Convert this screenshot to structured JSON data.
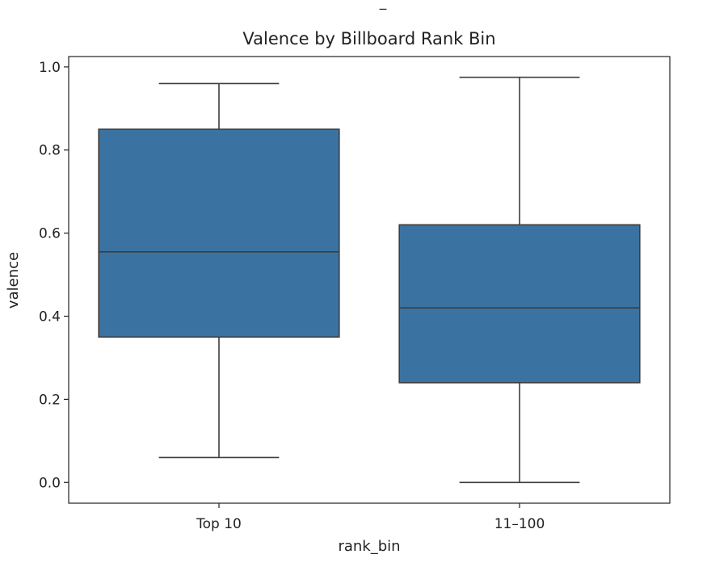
{
  "chart_data": {
    "type": "box",
    "top_mark": "_",
    "title": "Valence by Billboard Rank Bin",
    "xlabel": "rank_bin",
    "ylabel": "valence",
    "ylim": [
      -0.05,
      1.025
    ],
    "yticks": [
      0.0,
      0.2,
      0.4,
      0.6,
      0.8,
      1.0
    ],
    "ytick_labels": [
      "0.0",
      "0.2",
      "0.4",
      "0.6",
      "0.8",
      "1.0"
    ],
    "grid": false,
    "box_color": "#3a73a1",
    "line_color": "#3d3d3d",
    "categories": [
      "Top 10",
      "11–100"
    ],
    "boxes": [
      {
        "category": "Top 10",
        "whisker_low": 0.06,
        "q1": 0.35,
        "median": 0.555,
        "q3": 0.85,
        "whisker_high": 0.96
      },
      {
        "category": "11–100",
        "whisker_low": 0.0,
        "q1": 0.24,
        "median": 0.42,
        "q3": 0.62,
        "whisker_high": 0.975
      }
    ]
  }
}
